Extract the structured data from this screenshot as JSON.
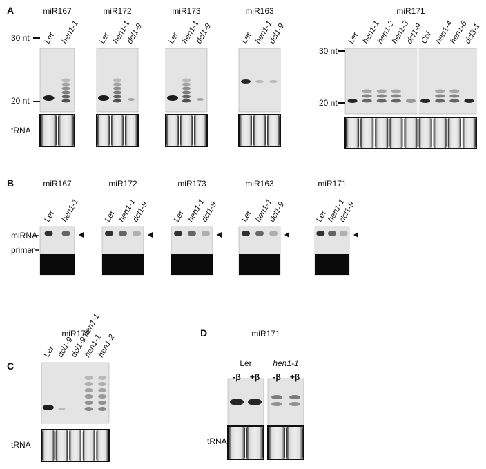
{
  "panels": [
    {
      "label": "A",
      "blots": [
        {
          "title": "miR167",
          "lanes": [
            "Ler",
            "hen1-1"
          ]
        },
        {
          "title": "miR172",
          "lanes": [
            "Ler",
            "hen1-1",
            "dcl1-9"
          ]
        },
        {
          "title": "miR173",
          "lanes": [
            "Ler",
            "hen1-1",
            "dcl1-9"
          ]
        },
        {
          "title": "miR163",
          "lanes": [
            "Ler",
            "hen1-1",
            "dcl1-9"
          ]
        },
        {
          "title": "miR171",
          "lanes": [
            "Ler",
            "hen1-1",
            "hen1-2",
            "hen1-3",
            "dcl1-9",
            "Col",
            "hen1-4",
            "hen1-6",
            "dcl3-1"
          ]
        }
      ],
      "size_markers": [
        "30 nt",
        "20 nt"
      ],
      "loading": "tRNA"
    },
    {
      "label": "B",
      "blots": [
        {
          "title": "miR167",
          "lanes": [
            "Ler",
            "hen1-1"
          ]
        },
        {
          "title": "miR172",
          "lanes": [
            "Ler",
            "hen1-1",
            "dcl1-9"
          ]
        },
        {
          "title": "miR173",
          "lanes": [
            "Ler",
            "hen1-1",
            "dcl1-9"
          ]
        },
        {
          "title": "miR163",
          "lanes": [
            "Ler",
            "hen1-1",
            "dcl1-9"
          ]
        },
        {
          "title": "miR171",
          "lanes": [
            "Ler",
            "hen1-1",
            "dcl1-9"
          ]
        }
      ],
      "markers": [
        "miRNA",
        "primer"
      ]
    },
    {
      "label": "C",
      "blots": [
        {
          "title": "miR172",
          "lanes": [
            "Ler",
            "dcl1-9",
            "dcl1-9 hen1-1",
            "hen1-1",
            "hen1-2"
          ]
        }
      ],
      "loading": "tRNA"
    },
    {
      "label": "D",
      "blots": [
        {
          "title": "miR171",
          "groups": [
            "Ler",
            "hen1-1"
          ],
          "lanes": [
            "-β",
            "+β",
            "-β",
            "+β"
          ]
        }
      ],
      "loading": "tRNA"
    }
  ]
}
